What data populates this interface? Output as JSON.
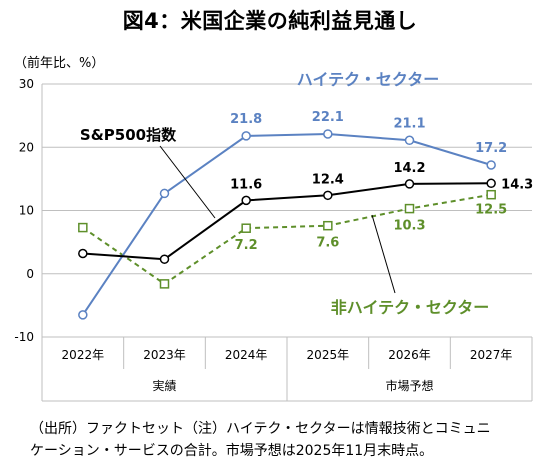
{
  "title": "図4：米国企業の純利益見通し",
  "unit_label": "（前年比、%）",
  "note_lines": [
    "（出所）ファクトセット（注）ハイテク・セクターは情報技術とコミュニ",
    "ケーション・サービスの合計。市場予想は2025年11月末時点。"
  ],
  "colors": {
    "hitech": "#5b82c2",
    "sp500": "#000000",
    "nonhitech": "#5e8f2a",
    "grid": "#bfbfbf"
  },
  "chart_data": {
    "type": "line",
    "categories": [
      "2022年",
      "2023年",
      "2024年",
      "2025年",
      "2026年",
      "2027年"
    ],
    "group_labels": [
      {
        "label": "実績",
        "from": 0,
        "to": 2
      },
      {
        "label": "市場予想",
        "from": 3,
        "to": 5
      }
    ],
    "ylim": [
      -10,
      30
    ],
    "yticks": [
      -10,
      0,
      10,
      20,
      30
    ],
    "grid": "horizontal",
    "legend": "inline labels",
    "series": [
      {
        "key": "hitech",
        "name": "ハイテク・セクター",
        "values": [
          -6.5,
          12.7,
          21.8,
          22.1,
          21.1,
          17.2
        ],
        "labels": [
          "",
          "",
          "21.8",
          "22.1",
          "21.1",
          "17.2"
        ],
        "style": "solid"
      },
      {
        "key": "sp500",
        "name": "S&P500指数",
        "values": [
          3.2,
          2.3,
          11.6,
          12.4,
          14.2,
          14.3
        ],
        "labels": [
          "",
          "",
          "11.6",
          "12.4",
          "14.2",
          "14.3"
        ],
        "style": "solid"
      },
      {
        "key": "nonhitech",
        "name": "非ハイテク・セクター",
        "values": [
          7.3,
          -1.6,
          7.2,
          7.6,
          10.3,
          12.5
        ],
        "labels": [
          "",
          "",
          "7.2",
          "7.6",
          "10.3",
          "12.5"
        ],
        "style": "dashed"
      }
    ]
  }
}
